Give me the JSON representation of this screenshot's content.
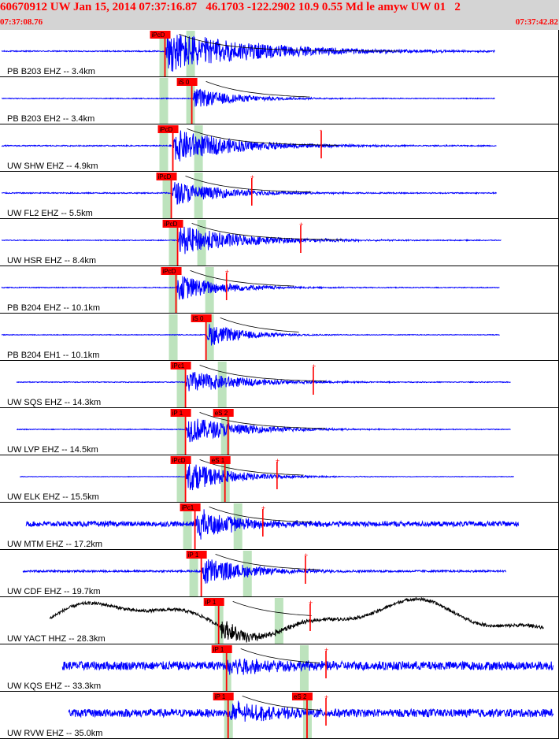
{
  "header": {
    "title": "60670912 UW Jan 15, 2014 07:37:16.87   46.1703 -122.2902 10.9 0.55 Md le amyw UW 01   2",
    "start_time": "07:37:08.76",
    "end_time": "07:37:42.82"
  },
  "colors": {
    "header_bg": "#d4d4d4",
    "header_text": "#ff0000",
    "waveform": "#0000ff",
    "waveform_alt": "#000000",
    "pick": "#ff0000",
    "window": "#bde3bd",
    "separator": "#000000"
  },
  "chart_data": {
    "type": "line",
    "title": "60670912 UW Jan 15, 2014 07:37:16.87   46.1703 -122.2902 10.9 0.55 Md le amyw UW 01   2",
    "xlabel": "",
    "ylabel": "",
    "x_range_label": [
      "07:37:08.76",
      "07:37:42.82"
    ],
    "x_unit": "seconds after 07:37:08.76",
    "xlim": [
      0,
      34.06
    ],
    "grid": false,
    "traces": [
      {
        "label": "PB B203 EHZ -- 3.4km",
        "color": "#0000ff",
        "start": 0.05,
        "end": 31.3,
        "onset": 10.4,
        "coda": 20,
        "amp": 28,
        "noise": 0.7,
        "windows": [
          10.3,
          12.0
        ],
        "picks": [
          {
            "label": "iPcD",
            "t": 10.4
          }
        ]
      },
      {
        "label": "PB B203 EH2 -- 3.4km",
        "color": "#0000ff",
        "start": 0.05,
        "end": 31.3,
        "onset": 12.1,
        "coda": 10,
        "amp": 14,
        "noise": 0.5,
        "windows": [
          10.3,
          12.0
        ],
        "picks": [
          {
            "label": "iS 0",
            "t": 12.1
          }
        ]
      },
      {
        "label": "UW SHW EHZ -- 4.9km",
        "color": "#0000ff",
        "start": 0.05,
        "end": 31.4,
        "onset": 10.9,
        "coda": 14,
        "amp": 22,
        "noise": 0.7,
        "windows": [
          10.3,
          12.5
        ],
        "picks": [
          {
            "label": "iPcD",
            "t": 10.9
          },
          {
            "label": "-",
            "t": 20.3
          }
        ]
      },
      {
        "label": "UW FL2 EHZ -- 5.5km",
        "color": "#0000ff",
        "start": 0.05,
        "end": 31.4,
        "onset": 10.8,
        "coda": 12,
        "amp": 16,
        "noise": 0.7,
        "windows": [
          10.5,
          12.5
        ],
        "picks": [
          {
            "label": "iPcD",
            "t": 10.8
          },
          {
            "label": "+",
            "t": 15.9
          }
        ]
      },
      {
        "label": "UW HSR EHZ -- 8.4km",
        "color": "#0000ff",
        "start": 0.05,
        "end": 31.7,
        "onset": 11.2,
        "coda": 14,
        "amp": 20,
        "noise": 0.5,
        "windows": [
          10.9,
          12.7
        ],
        "picks": [
          {
            "label": "iPcD",
            "t": 11.2
          },
          {
            "label": "+",
            "t": 19.0
          }
        ]
      },
      {
        "label": "PB B204 EHZ -- 10.1km",
        "color": "#0000ff",
        "start": 0.05,
        "end": 31.6,
        "onset": 11.1,
        "coda": 10,
        "amp": 18,
        "noise": 0.5,
        "windows": [
          10.9,
          13.2
        ],
        "picks": [
          {
            "label": "iPcD",
            "t": 11.1
          },
          {
            "label": "+",
            "t": 14.3
          }
        ]
      },
      {
        "label": "PB B204 EH1 -- 10.1km",
        "color": "#0000ff",
        "start": 0.05,
        "end": 31.6,
        "onset": 13.0,
        "coda": 8,
        "amp": 16,
        "noise": 0.4,
        "windows": [
          10.9,
          13.2
        ],
        "picks": [
          {
            "label": "iS 0",
            "t": 13.0
          }
        ]
      },
      {
        "label": "UW SQS EHZ -- 14.3km",
        "color": "#0000ff",
        "start": 1.0,
        "end": 32.3,
        "onset": 11.7,
        "coda": 12,
        "amp": 16,
        "noise": 0.5,
        "windows": [
          11.4,
          14.0
        ],
        "picks": [
          {
            "label": "iPc1",
            "t": 11.7
          },
          {
            "label": "+",
            "t": 19.8
          }
        ]
      },
      {
        "label": "UW LVP EHZ -- 14.5km",
        "color": "#0000ff",
        "start": 1.0,
        "end": 32.3,
        "onset": 11.7,
        "coda": 12,
        "amp": 18,
        "noise": 0.5,
        "windows": [
          11.4,
          14.2
        ],
        "picks": [
          {
            "label": "iP 1",
            "t": 11.7
          },
          {
            "label": "eS 2",
            "t": 14.4
          }
        ]
      },
      {
        "label": "UW ELK EHZ -- 15.5km",
        "color": "#0000ff",
        "start": 1.2,
        "end": 32.5,
        "onset": 11.7,
        "coda": 10,
        "amp": 20,
        "noise": 0.3,
        "windows": [
          11.4,
          14.2
        ],
        "picks": [
          {
            "label": "iPcD",
            "t": 11.7
          },
          {
            "label": "eS 1",
            "t": 14.2
          },
          {
            "label": "+",
            "t": 17.5
          }
        ]
      },
      {
        "label": "UW MTM EHZ -- 17.2km",
        "color": "#0000ff",
        "start": 1.6,
        "end": 32.8,
        "onset": 12.3,
        "coda": 10,
        "amp": 20,
        "noise": 3.2,
        "windows": [
          11.8,
          15.0
        ],
        "picks": [
          {
            "label": "iPc1",
            "t": 12.3
          },
          {
            "label": "+",
            "t": 16.6
          }
        ]
      },
      {
        "label": "UW CDF EHZ -- 19.7km",
        "color": "#0000ff",
        "start": 1.4,
        "end": 32.0,
        "onset": 12.7,
        "coda": 10,
        "amp": 20,
        "noise": 1.2,
        "windows": [
          12.2,
          15.6
        ],
        "picks": [
          {
            "label": "iP 1",
            "t": 12.7
          },
          {
            "label": "+",
            "t": 19.3
          }
        ]
      },
      {
        "label": "UW YACT HHZ -- 28.3km",
        "color": "#000000",
        "start": 3.1,
        "end": 34.4,
        "onset": 13.8,
        "coda": 8,
        "amp": 14,
        "noise": 2.0,
        "swell": 20,
        "windows": [
          13.8,
          17.6
        ],
        "picks": [
          {
            "label": "iP 1",
            "t": 13.8
          },
          {
            "label": "+",
            "t": 19.6
          }
        ]
      },
      {
        "label": "UW KQS EHZ -- 33.3km",
        "color": "#0000ff",
        "start": 3.9,
        "end": 35.0,
        "onset": 14.3,
        "coda": 8,
        "amp": 16,
        "noise": 5.5,
        "windows": [
          14.3,
          19.2
        ],
        "picks": [
          {
            "label": "iP 1",
            "t": 14.3
          },
          {
            "label": "+",
            "t": 20.6
          }
        ]
      },
      {
        "label": "UW RVW EHZ -- 35.0km",
        "color": "#0000ff",
        "start": 4.3,
        "end": 35.0,
        "onset": 14.4,
        "coda": 8,
        "amp": 16,
        "noise": 5.0,
        "windows": [
          14.4,
          19.4
        ],
        "picks": [
          {
            "label": "iP 1",
            "t": 14.4
          },
          {
            "label": "eS 2",
            "t": 19.4
          },
          {
            "label": "+",
            "t": 20.6
          }
        ]
      }
    ]
  }
}
